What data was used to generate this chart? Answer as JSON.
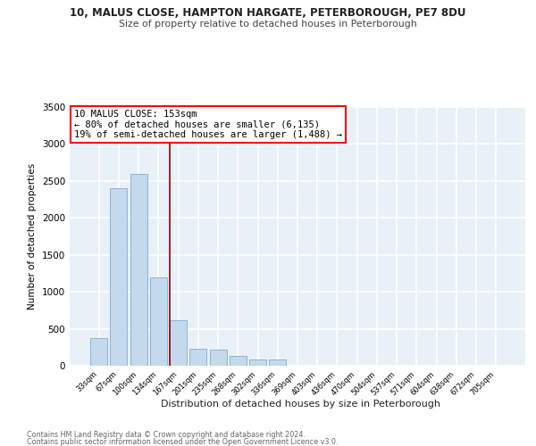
{
  "title1": "10, MALUS CLOSE, HAMPTON HARGATE, PETERBOROUGH, PE7 8DU",
  "title2": "Size of property relative to detached houses in Peterborough",
  "xlabel": "Distribution of detached houses by size in Peterborough",
  "ylabel": "Number of detached properties",
  "categories": [
    "33sqm",
    "67sqm",
    "100sqm",
    "134sqm",
    "167sqm",
    "201sqm",
    "235sqm",
    "268sqm",
    "302sqm",
    "336sqm",
    "369sqm",
    "403sqm",
    "436sqm",
    "470sqm",
    "504sqm",
    "537sqm",
    "571sqm",
    "604sqm",
    "638sqm",
    "672sqm",
    "705sqm"
  ],
  "values": [
    380,
    2400,
    2600,
    1200,
    620,
    230,
    220,
    130,
    90,
    80,
    0,
    0,
    0,
    0,
    0,
    0,
    0,
    0,
    0,
    0,
    0
  ],
  "bar_color": "#c5d9ec",
  "bar_edge_color": "#7aafd4",
  "background_color": "#e8f0f8",
  "grid_color": "#ffffff",
  "ylim": [
    0,
    3500
  ],
  "yticks": [
    0,
    500,
    1000,
    1500,
    2000,
    2500,
    3000,
    3500
  ],
  "red_line_x": 3.58,
  "annotation_line1": "10 MALUS CLOSE: 153sqm",
  "annotation_line2": "← 80% of detached houses are smaller (6,135)",
  "annotation_line3": "19% of semi-detached houses are larger (1,488) →",
  "footer1": "Contains HM Land Registry data © Crown copyright and database right 2024.",
  "footer2": "Contains public sector information licensed under the Open Government Licence v3.0."
}
